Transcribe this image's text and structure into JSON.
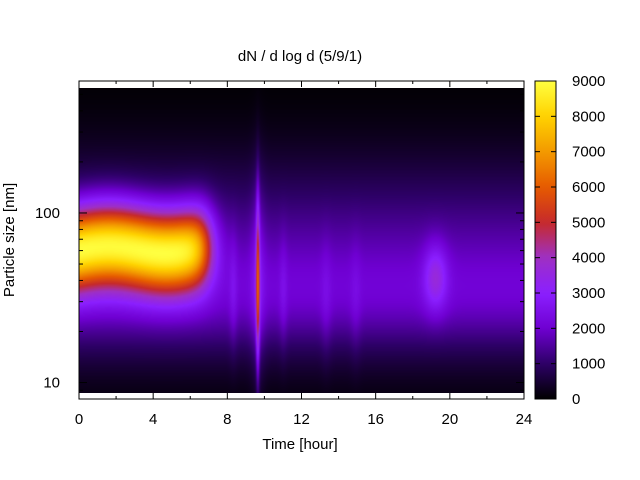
{
  "chart_data": {
    "type": "heatmap",
    "title": "dN / d log d (5/9/1)",
    "xlabel": "Time [hour]",
    "ylabel": "Particle size [nm]",
    "xlim": [
      0,
      24
    ],
    "x_ticks": [
      "0",
      "4",
      "8",
      "12",
      "16",
      "20",
      "24"
    ],
    "y_scale": "log",
    "ylim": [
      8.0,
      600.0
    ],
    "y_ticks": [
      "10",
      "100"
    ],
    "colorbar": {
      "min": 0,
      "max": 9000,
      "ticks": [
        "0",
        "1000",
        "2000",
        "3000",
        "4000",
        "5000",
        "6000",
        "7000",
        "8000",
        "9000"
      ],
      "colormap": [
        "#000000",
        "#2d0066",
        "#6f00d2",
        "#8b1fff",
        "#9e30c4",
        "#c62a2a",
        "#e65a00",
        "#f39a00",
        "#ffd200",
        "#ffff40"
      ]
    },
    "features": [
      {
        "name": "morning mode",
        "time_range": [
          0,
          7.2
        ],
        "peak_diameter_nm": 65,
        "peak_value": 8600
      },
      {
        "name": "vertical spike",
        "time": 9.6,
        "diameter_range_nm": [
          15,
          100
        ],
        "peak_value": 5000
      },
      {
        "name": "evening mode",
        "time": 19.2,
        "peak_diameter_nm": 42,
        "peak_value": 3200
      }
    ],
    "grid": false
  }
}
